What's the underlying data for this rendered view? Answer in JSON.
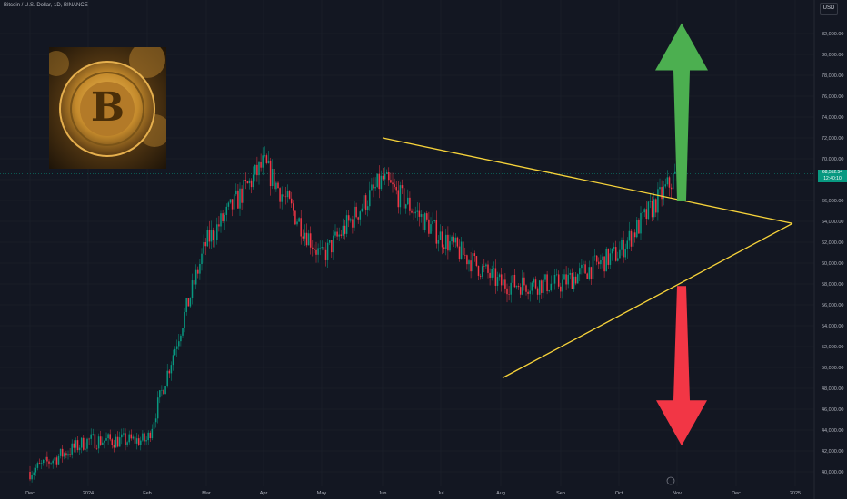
{
  "header": {
    "title": "Bitcoin / U.S. Dollar, 1D, BINANCE",
    "currency": "USD"
  },
  "price_tag": {
    "price": "68,552.54",
    "countdown": "12:40:10"
  },
  "logo": {
    "letter": "B"
  },
  "colors": {
    "background": "#131722",
    "up": "#089981",
    "down": "#f23645",
    "triangle": "#f7d33a",
    "arrow_up": "#4caf50",
    "arrow_down": "#f23645",
    "grid": "#1e222d"
  },
  "chart_data": {
    "type": "candlestick",
    "title": "Bitcoin / U.S. Dollar, 1D, BINANCE",
    "xlabel": "",
    "ylabel": "",
    "ylim": [
      39000,
      84000
    ],
    "y_ticks": [
      40000,
      42000,
      44000,
      46000,
      48000,
      50000,
      52000,
      54000,
      56000,
      58000,
      60000,
      62000,
      64000,
      66000,
      68000,
      70000,
      72000,
      74000,
      76000,
      78000,
      80000,
      82000
    ],
    "x_ticks": [
      "Dec",
      "2024",
      "Feb",
      "Mar",
      "Apr",
      "May",
      "Jun",
      "Jul",
      "Aug",
      "Sep",
      "Oct",
      "Nov",
      "Dec",
      "2025"
    ],
    "grid": true,
    "series": [
      {
        "x": "Dec",
        "value": 40000
      },
      {
        "x": "2024",
        "value": 43000
      },
      {
        "x": "Feb",
        "value": 43000
      },
      {
        "x": "Mar",
        "value": 62000
      },
      {
        "x": "Apr",
        "value": 69500
      },
      {
        "x": "May",
        "value": 60500
      },
      {
        "x": "Jun",
        "value": 68000
      },
      {
        "x": "Jul",
        "value": 62500
      },
      {
        "x": "Aug",
        "value": 58000
      },
      {
        "x": "Sep",
        "value": 58000
      },
      {
        "x": "Oct",
        "value": 61000
      },
      {
        "x": "Nov",
        "value": 68552.54
      }
    ],
    "annotations": {
      "triangle_upper": [
        {
          "x": "Jun",
          "y": 72000
        },
        {
          "x": "2025",
          "y": 63800
        }
      ],
      "triangle_lower": [
        {
          "x": "Aug",
          "y": 49000
        },
        {
          "x": "2025",
          "y": 63800
        }
      ],
      "arrow_up_tip": 83000,
      "arrow_down_tip": 42500
    },
    "last_price": 68552.54
  }
}
